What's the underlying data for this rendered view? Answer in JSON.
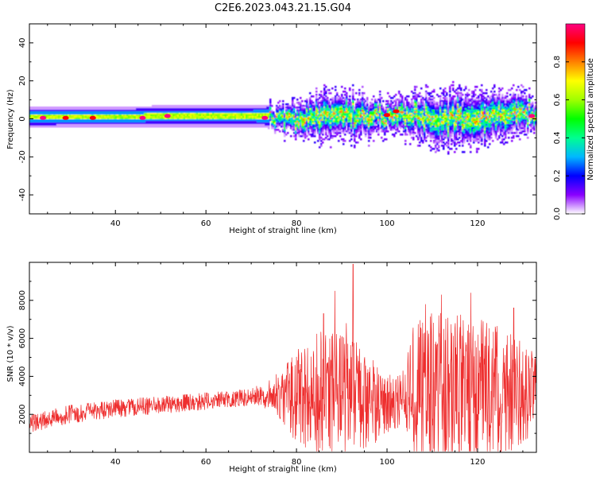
{
  "figure_title": "C2E6.2023.043.21.15.G04",
  "chart_data": [
    {
      "type": "heatmap",
      "xlabel": "Height of straight line (km)",
      "ylabel": "Frequency (Hz)",
      "xlim": [
        21,
        133
      ],
      "ylim": [
        -50,
        50
      ],
      "xticks": [
        40,
        60,
        80,
        100,
        120
      ],
      "yticks": [
        -40,
        -20,
        0,
        20,
        40
      ],
      "grid": false,
      "colorbar": {
        "label": "Normalized spectral amplitude",
        "range": [
          0.0,
          1.0
        ],
        "ticks": [
          0.0,
          0.2,
          0.4,
          0.6,
          0.8
        ],
        "colormap": [
          "#ffffff",
          "#8a00ff",
          "#0000ff",
          "#00b8ff",
          "#00ff90",
          "#00ff00",
          "#a0ff00",
          "#ffff00",
          "#ff8000",
          "#ff0000",
          "#ff0080"
        ]
      },
      "ridge_center_hz": [
        [
          21,
          0.8
        ],
        [
          40,
          1.0
        ],
        [
          50,
          1.5
        ],
        [
          60,
          1.5
        ],
        [
          72,
          1.5
        ],
        [
          80,
          1.0
        ],
        [
          90,
          2.0
        ],
        [
          95,
          1.0
        ],
        [
          100,
          1.5
        ],
        [
          103,
          3.0
        ],
        [
          110,
          0.0
        ],
        [
          115,
          1.0
        ],
        [
          120,
          0.5
        ],
        [
          125,
          2.0
        ],
        [
          128,
          4.0
        ],
        [
          133,
          2.0
        ]
      ],
      "ridge_halfwidth_hz": [
        [
          21,
          4
        ],
        [
          70,
          4
        ],
        [
          75,
          5
        ],
        [
          85,
          10
        ],
        [
          95,
          9
        ],
        [
          100,
          7
        ],
        [
          110,
          11
        ],
        [
          120,
          12
        ],
        [
          130,
          9
        ],
        [
          133,
          6
        ]
      ],
      "hotspots": [
        {
          "x": 24,
          "y": 0.5,
          "value": 1.0
        },
        {
          "x": 29,
          "y": 0.5,
          "value": 0.9
        },
        {
          "x": 35,
          "y": 0.5,
          "value": 0.9
        },
        {
          "x": 46,
          "y": 0.5,
          "value": 1.0
        },
        {
          "x": 51.5,
          "y": 1.5,
          "value": 1.0
        },
        {
          "x": 73,
          "y": 0.5,
          "value": 1.0
        },
        {
          "x": 100,
          "y": 2.0,
          "value": 0.9
        },
        {
          "x": 102,
          "y": 4.0,
          "value": 0.9
        },
        {
          "x": 132,
          "y": 1.5,
          "value": 1.0
        }
      ]
    },
    {
      "type": "line",
      "xlabel": "Height of straight line (km)",
      "ylabel": "SNR (10 * v/v)",
      "xlim": [
        21,
        133
      ],
      "ylim": [
        0,
        10000
      ],
      "xticks": [
        40,
        60,
        80,
        100,
        120
      ],
      "yticks": [
        2000,
        4000,
        6000,
        8000
      ],
      "grid": false,
      "color": "#ee2e2e",
      "baseline": [
        [
          21,
          1500
        ],
        [
          30,
          2000
        ],
        [
          40,
          2300
        ],
        [
          50,
          2500
        ],
        [
          60,
          2700
        ],
        [
          70,
          2900
        ],
        [
          75,
          3100
        ],
        [
          80,
          3000
        ],
        [
          85,
          2900
        ],
        [
          90,
          2900
        ],
        [
          95,
          2800
        ],
        [
          100,
          2500
        ],
        [
          105,
          3000
        ],
        [
          110,
          3400
        ],
        [
          115,
          3400
        ],
        [
          120,
          3400
        ],
        [
          125,
          3200
        ],
        [
          130,
          3200
        ],
        [
          133,
          3300
        ]
      ],
      "envelope_half_range": [
        [
          21,
          500
        ],
        [
          70,
          450
        ],
        [
          75,
          900
        ],
        [
          80,
          2500
        ],
        [
          85,
          3500
        ],
        [
          90,
          3500
        ],
        [
          95,
          2800
        ],
        [
          100,
          1500
        ],
        [
          104,
          1600
        ],
        [
          106,
          3800
        ],
        [
          110,
          4000
        ],
        [
          120,
          4000
        ],
        [
          125,
          3500
        ],
        [
          130,
          2800
        ],
        [
          133,
          2000
        ]
      ],
      "peaks": [
        {
          "x": 92.5,
          "y": 9900
        },
        {
          "x": 88.5,
          "y": 8500
        },
        {
          "x": 112,
          "y": 8300
        },
        {
          "x": 118.5,
          "y": 8400
        },
        {
          "x": 108.5,
          "y": 7800
        },
        {
          "x": 86,
          "y": 7300
        },
        {
          "x": 128,
          "y": 7600
        },
        {
          "x": 115.5,
          "y": 7200
        },
        {
          "x": 91,
          "y": 6800
        }
      ]
    }
  ]
}
